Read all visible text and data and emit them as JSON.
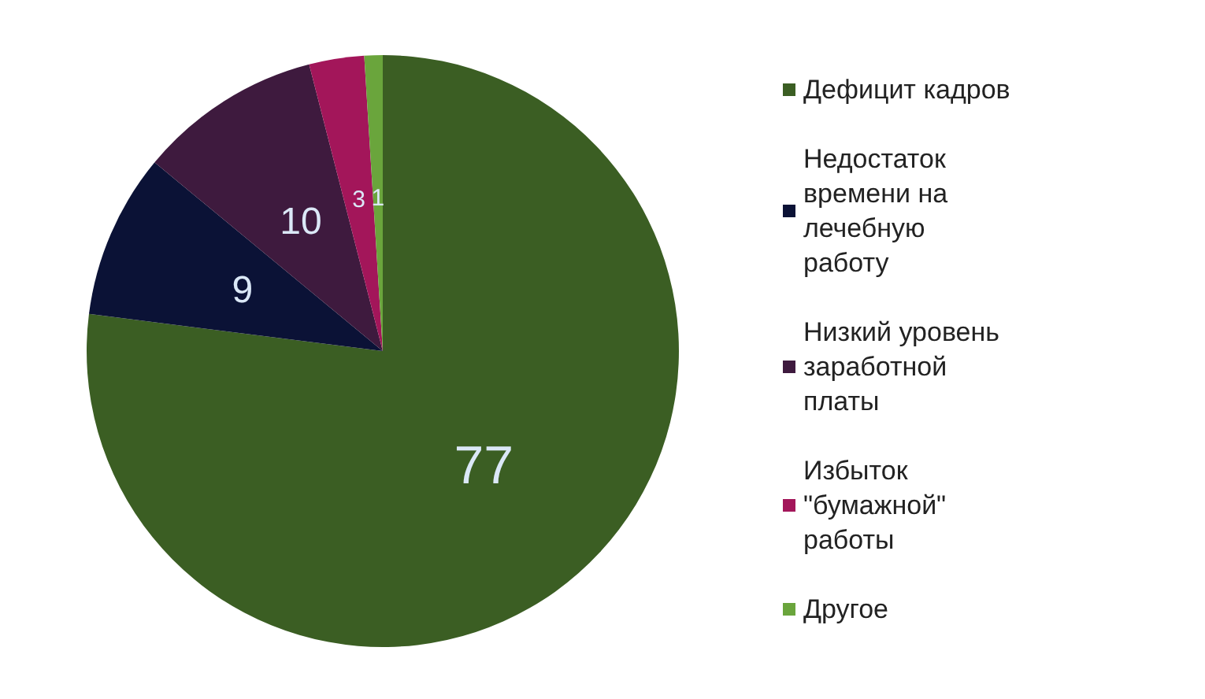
{
  "chart_data": {
    "type": "pie",
    "categories": [
      "Дефицит кадров",
      "Недостаток времени на лечебную работу",
      "Низкий уровень заработной платы",
      "Избыток \"бумажной\" работы",
      "Другое"
    ],
    "values": [
      77,
      9,
      10,
      3,
      1
    ],
    "colors": [
      "#3b5e23",
      "#0b1236",
      "#3e1a3e",
      "#a3165a",
      "#6aa53c"
    ],
    "data_labels": true,
    "legend": "right"
  }
}
